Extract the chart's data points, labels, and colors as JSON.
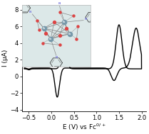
{
  "xlim": [
    -0.65,
    2.1
  ],
  "ylim": [
    -4.2,
    8.6
  ],
  "xticks": [
    -0.5,
    0.0,
    0.5,
    1.0,
    1.5,
    2.0
  ],
  "yticks": [
    -4,
    -2,
    0,
    2,
    4,
    6,
    8
  ],
  "xlabel": "E (V) vs Fc$^{0/+}$",
  "ylabel": "I (μA)",
  "line_color": "black",
  "background_color": "white",
  "axis_fontsize": 6.5,
  "tick_fontsize": 6,
  "lw": 1.0,
  "co_color": "#7799aa",
  "o_color": "#dd4444",
  "n_color": "#7777dd",
  "bond_color": "#888888"
}
